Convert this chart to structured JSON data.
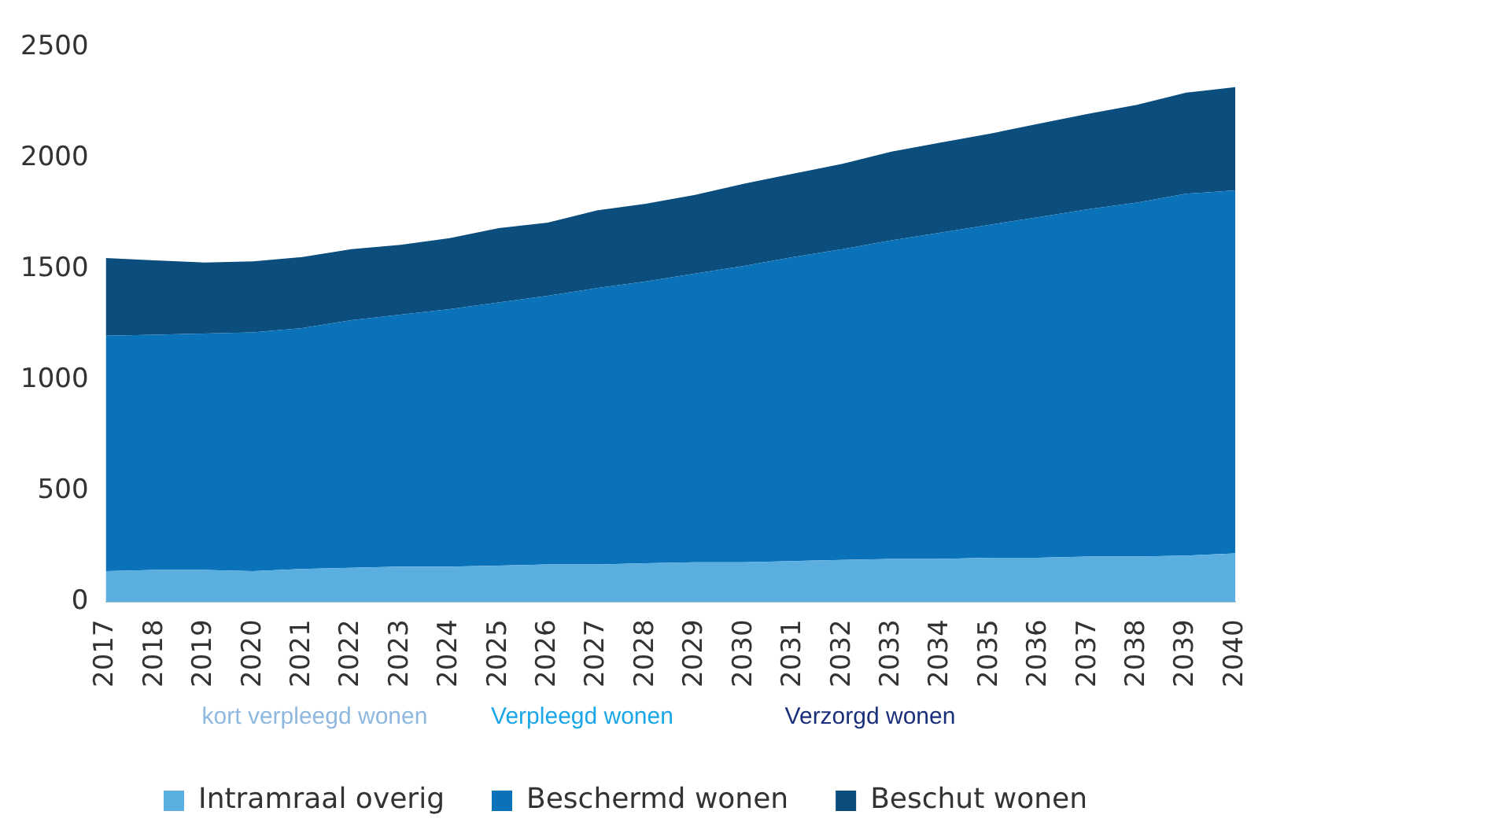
{
  "chart_data": {
    "type": "area",
    "stacked": true,
    "categories": [
      "2017",
      "2018",
      "2019",
      "2020",
      "2021",
      "2022",
      "2023",
      "2024",
      "2025",
      "2026",
      "2027",
      "2028",
      "2029",
      "2030",
      "2031",
      "2032",
      "2033",
      "2034",
      "2035",
      "2036",
      "2037",
      "2038",
      "2039",
      "2040"
    ],
    "series": [
      {
        "name": "Intramraal overig",
        "color": "#5aaee0",
        "values": [
          140,
          145,
          145,
          140,
          150,
          155,
          160,
          160,
          165,
          170,
          170,
          175,
          180,
          180,
          185,
          190,
          195,
          195,
          200,
          200,
          205,
          205,
          210,
          220
        ]
      },
      {
        "name": "Beschermd wonen",
        "color": "#0a72b8",
        "values": [
          1060,
          1060,
          1065,
          1075,
          1085,
          1115,
          1135,
          1160,
          1185,
          1210,
          1245,
          1270,
          1300,
          1335,
          1370,
          1400,
          1435,
          1470,
          1500,
          1535,
          1565,
          1595,
          1630,
          1635
        ]
      },
      {
        "name": "Beschut wonen",
        "color": "#0b4d7c",
        "values": [
          350,
          335,
          320,
          320,
          320,
          320,
          315,
          320,
          335,
          330,
          350,
          350,
          355,
          370,
          375,
          385,
          400,
          405,
          410,
          420,
          430,
          440,
          455,
          465
        ]
      }
    ],
    "ylim": [
      0,
      2500
    ],
    "yticks": [
      0,
      500,
      1000,
      1500,
      2000,
      2500
    ],
    "legend": "bottom",
    "annotations": [
      "kort verpleegd wonen",
      "Verpleegd wonen",
      "Verzorgd wonen"
    ]
  }
}
